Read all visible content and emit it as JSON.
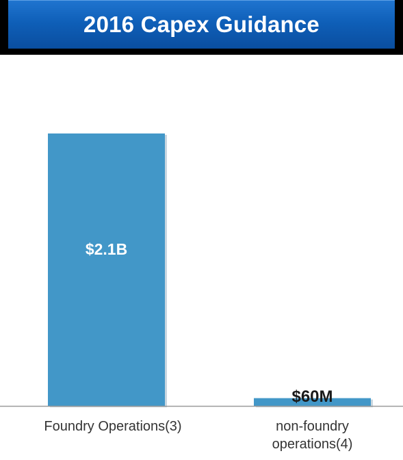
{
  "title": "2016 Capex Guidance",
  "colors": {
    "bar": "#4297c8",
    "axis": "#9a9a9a",
    "title_bg": "#0f5fb8"
  },
  "chart_data": {
    "type": "bar",
    "title": "2016 Capex Guidance",
    "categories": [
      "Foundry Operations(3)",
      "non-foundry operations(4)"
    ],
    "values": [
      2100,
      60
    ],
    "data_labels": [
      "$2.1B",
      "$60M"
    ],
    "unit": "$M",
    "ylim": [
      0,
      2100
    ],
    "grid": false,
    "legend": "none"
  }
}
